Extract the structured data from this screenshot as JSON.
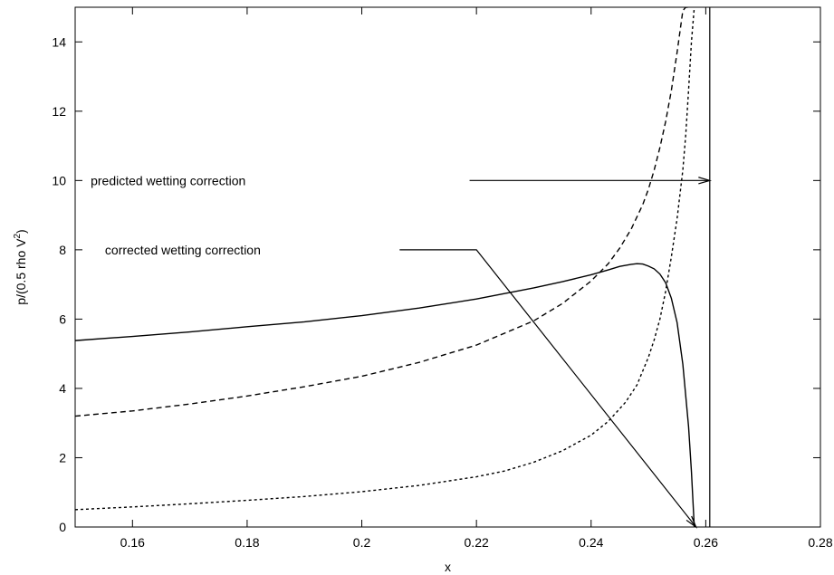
{
  "chart_data": {
    "type": "line",
    "title": "",
    "xlabel": "x",
    "ylabel_main": "p/(0.5 rho V",
    "ylabel_sup": "2",
    "ylabel_close": ")",
    "xlim": [
      0.15,
      0.28
    ],
    "ylim": [
      0,
      15
    ],
    "xticks": [
      {
        "v": 0.16,
        "label": "0.16"
      },
      {
        "v": 0.18,
        "label": "0.18"
      },
      {
        "v": 0.2,
        "label": "0.2"
      },
      {
        "v": 0.22,
        "label": "0.22"
      },
      {
        "v": 0.24,
        "label": "0.24"
      },
      {
        "v": 0.26,
        "label": "0.26"
      },
      {
        "v": 0.28,
        "label": "0.28"
      }
    ],
    "yticks": [
      {
        "v": 0,
        "label": "0"
      },
      {
        "v": 2,
        "label": "2"
      },
      {
        "v": 4,
        "label": "4"
      },
      {
        "v": 6,
        "label": "6"
      },
      {
        "v": 8,
        "label": "8"
      },
      {
        "v": 10,
        "label": "10"
      },
      {
        "v": 12,
        "label": "12"
      },
      {
        "v": 14,
        "label": "14"
      }
    ],
    "grid": false,
    "series": [
      {
        "style": "solid",
        "x": [
          0.15,
          0.16,
          0.17,
          0.18,
          0.19,
          0.2,
          0.21,
          0.22,
          0.23,
          0.235,
          0.24,
          0.243,
          0.245,
          0.247,
          0.248,
          0.249,
          0.25,
          0.251,
          0.252,
          0.253,
          0.254,
          0.255,
          0.256,
          0.257,
          0.2575,
          0.258
        ],
        "y": [
          5.38,
          5.5,
          5.63,
          5.78,
          5.92,
          6.1,
          6.32,
          6.58,
          6.9,
          7.08,
          7.28,
          7.42,
          7.52,
          7.58,
          7.6,
          7.59,
          7.53,
          7.45,
          7.3,
          7.05,
          6.6,
          5.9,
          4.7,
          2.9,
          1.6,
          0
        ]
      },
      {
        "style": "dashed",
        "x": [
          0.15,
          0.16,
          0.17,
          0.18,
          0.19,
          0.2,
          0.21,
          0.22,
          0.23,
          0.235,
          0.24,
          0.243,
          0.245,
          0.247,
          0.249,
          0.25,
          0.251,
          0.252,
          0.253,
          0.254,
          0.255,
          0.2555,
          0.256,
          0.2565,
          0.257
        ],
        "y": [
          3.2,
          3.35,
          3.55,
          3.78,
          4.05,
          4.35,
          4.75,
          5.25,
          5.95,
          6.45,
          7.1,
          7.6,
          8.05,
          8.6,
          9.3,
          9.75,
          10.3,
          10.95,
          11.7,
          12.6,
          13.7,
          14.3,
          14.9,
          15.0,
          15.0
        ]
      },
      {
        "style": "dotted",
        "x": [
          0.15,
          0.16,
          0.17,
          0.18,
          0.19,
          0.2,
          0.21,
          0.22,
          0.225,
          0.23,
          0.235,
          0.24,
          0.243,
          0.246,
          0.248,
          0.25,
          0.251,
          0.252,
          0.253,
          0.254,
          0.255,
          0.256,
          0.2565,
          0.257,
          0.2575,
          0.258
        ],
        "y": [
          0.5,
          0.58,
          0.67,
          0.77,
          0.88,
          1.02,
          1.2,
          1.45,
          1.62,
          1.87,
          2.2,
          2.65,
          3.05,
          3.6,
          4.1,
          4.9,
          5.4,
          6.0,
          6.8,
          7.8,
          8.9,
          10.3,
          11.3,
          12.6,
          14.0,
          15.0
        ]
      }
    ],
    "vertical_line": {
      "x": 0.2607
    },
    "annotations": [
      {
        "text": "predicted wetting correction",
        "text_x": 0.1527,
        "text_y": 10.0,
        "line_start": [
          0.2188,
          10.0
        ],
        "arrow_to": [
          0.2607,
          10.0
        ]
      },
      {
        "text": "corrected wetting correction",
        "text_x": 0.1552,
        "text_y": 8.0,
        "line_start": [
          0.2066,
          8.0
        ],
        "bend": [
          0.22,
          8.0
        ],
        "arrow_to": [
          0.2583,
          0.0
        ]
      }
    ]
  }
}
